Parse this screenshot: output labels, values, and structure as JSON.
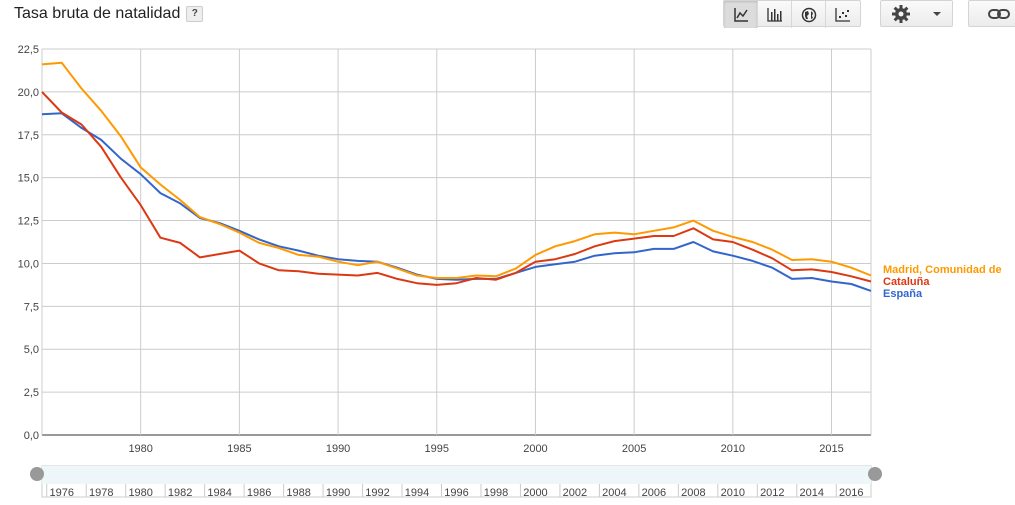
{
  "header": {
    "title": "Tasa bruta de natalidad",
    "help_label": "?"
  },
  "toolbar": {
    "chart_types": [
      {
        "icon": "line-chart-icon",
        "active": true
      },
      {
        "icon": "bar-chart-icon",
        "active": false
      },
      {
        "icon": "globe-map-icon",
        "active": false
      },
      {
        "icon": "scatter-chart-icon",
        "active": false
      }
    ],
    "settings_icon": "gear-icon",
    "dropdown_icon": "chevron-down-icon",
    "link_icon": "link-icon"
  },
  "chart_data": {
    "type": "line",
    "title": "Tasa bruta de natalidad",
    "x": [
      1975,
      1976,
      1977,
      1978,
      1979,
      1980,
      1981,
      1982,
      1983,
      1984,
      1985,
      1986,
      1987,
      1988,
      1989,
      1990,
      1991,
      1992,
      1993,
      1994,
      1995,
      1996,
      1997,
      1998,
      1999,
      2000,
      2001,
      2002,
      2003,
      2004,
      2005,
      2006,
      2007,
      2008,
      2009,
      2010,
      2011,
      2012,
      2013,
      2014,
      2015,
      2016,
      2017
    ],
    "series": [
      {
        "name": "Madrid, Comunidad de",
        "color": "#ff9900",
        "values": [
          21.6,
          21.7,
          20.2,
          18.9,
          17.4,
          15.6,
          14.6,
          13.7,
          12.7,
          12.3,
          11.8,
          11.2,
          10.9,
          10.5,
          10.4,
          10.1,
          9.9,
          10.1,
          9.7,
          9.3,
          9.15,
          9.15,
          9.3,
          9.25,
          9.7,
          10.5,
          11.0,
          11.3,
          11.7,
          11.8,
          11.7,
          11.9,
          12.1,
          12.5,
          11.9,
          11.55,
          11.25,
          10.8,
          10.2,
          10.25,
          10.1,
          9.75,
          9.3
        ]
      },
      {
        "name": "Cataluña",
        "color": "#dc3912",
        "values": [
          20.0,
          18.8,
          18.1,
          16.8,
          15.0,
          13.4,
          11.5,
          11.2,
          10.35,
          10.55,
          10.75,
          10.0,
          9.6,
          9.55,
          9.4,
          9.35,
          9.3,
          9.45,
          9.1,
          8.85,
          8.75,
          8.85,
          9.15,
          9.05,
          9.45,
          10.1,
          10.25,
          10.55,
          11.0,
          11.3,
          11.45,
          11.6,
          11.6,
          12.05,
          11.4,
          11.25,
          10.8,
          10.3,
          9.6,
          9.65,
          9.5,
          9.25,
          8.95
        ]
      },
      {
        "name": "España",
        "color": "#3366cc",
        "values": [
          18.7,
          18.75,
          17.9,
          17.2,
          16.1,
          15.2,
          14.1,
          13.5,
          12.65,
          12.35,
          11.9,
          11.4,
          11.0,
          10.75,
          10.45,
          10.25,
          10.15,
          10.1,
          9.75,
          9.35,
          9.1,
          9.05,
          9.1,
          9.1,
          9.45,
          9.8,
          9.95,
          10.1,
          10.45,
          10.6,
          10.65,
          10.85,
          10.85,
          11.25,
          10.7,
          10.45,
          10.15,
          9.75,
          9.1,
          9.15,
          8.95,
          8.8,
          8.4
        ]
      }
    ],
    "ylim": [
      0,
      22.5
    ],
    "y_ticks": [
      "0,0",
      "2,5",
      "5,0",
      "7,5",
      "10,0",
      "12,5",
      "15,0",
      "17,5",
      "20,0",
      "22,5"
    ],
    "x_ticks": [
      "1980",
      "1985",
      "1990",
      "1995",
      "2000",
      "2005",
      "2010",
      "2015"
    ],
    "grid": true,
    "legend_placement": "right"
  },
  "timeline": {
    "labels": [
      "1976",
      "1978",
      "1980",
      "1982",
      "1984",
      "1986",
      "1988",
      "1990",
      "1992",
      "1994",
      "1996",
      "1998",
      "2000",
      "2002",
      "2004",
      "2006",
      "2008",
      "2010",
      "2012",
      "2014",
      "2016"
    ]
  }
}
